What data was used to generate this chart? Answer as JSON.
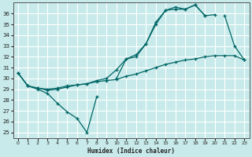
{
  "xlabel": "Humidex (Indice chaleur)",
  "bg_color": "#c8eaea",
  "grid_color": "#ffffff",
  "line_color": "#006666",
  "xlim": [
    -0.5,
    23.5
  ],
  "ylim": [
    24.5,
    37.0
  ],
  "yticks": [
    25,
    26,
    27,
    28,
    29,
    30,
    31,
    32,
    33,
    34,
    35,
    36
  ],
  "xticks": [
    0,
    1,
    2,
    3,
    4,
    5,
    6,
    7,
    8,
    9,
    10,
    11,
    12,
    13,
    14,
    15,
    16,
    17,
    18,
    19,
    20,
    21,
    22,
    23
  ],
  "series1_y": [
    30.5,
    29.3,
    29.0,
    28.6,
    27.7,
    26.9,
    26.3,
    25.0,
    28.3,
    null,
    30.0,
    31.8,
    32.0,
    33.2,
    35.2,
    36.3,
    36.6,
    36.4,
    36.8,
    35.8,
    35.9,
    null,
    null,
    null
  ],
  "series2_y": [
    30.5,
    29.3,
    29.1,
    29.0,
    29.1,
    29.3,
    29.4,
    29.5,
    29.7,
    29.8,
    29.9,
    30.2,
    30.4,
    30.7,
    31.0,
    31.3,
    31.5,
    31.7,
    31.8,
    32.0,
    32.1,
    32.1,
    32.1,
    31.7
  ],
  "series3_y": [
    30.5,
    29.3,
    29.1,
    28.9,
    29.0,
    29.2,
    29.4,
    29.5,
    29.8,
    30.0,
    30.8,
    31.8,
    32.2,
    33.2,
    35.0,
    36.3,
    36.4,
    36.4,
    36.8,
    35.8,
    null,
    35.8,
    33.0,
    31.7
  ]
}
